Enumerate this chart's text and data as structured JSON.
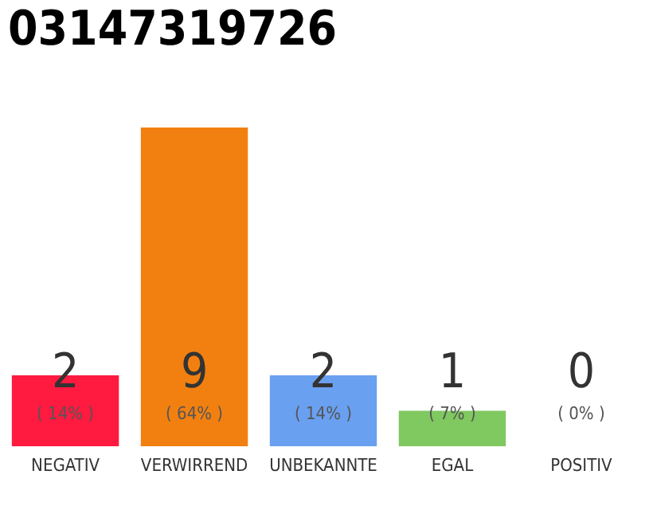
{
  "chart_data": {
    "type": "bar",
    "title": "03147319726",
    "categories": [
      "NEGATIV",
      "VERWIRREND",
      "UNBEKANNTE",
      "EGAL",
      "POSITIV"
    ],
    "values": [
      2,
      9,
      2,
      1,
      0
    ],
    "colors": [
      "#ff1a40",
      "#f28010",
      "#6aa0f0",
      "#80c860",
      "#bbbbbb"
    ],
    "data_labels": true,
    "annotations": [
      "( 14% )",
      "( 64% )",
      "( 14% )",
      "( 7% )",
      "( 0% )"
    ],
    "grid": false,
    "tick_labels": "x"
  }
}
